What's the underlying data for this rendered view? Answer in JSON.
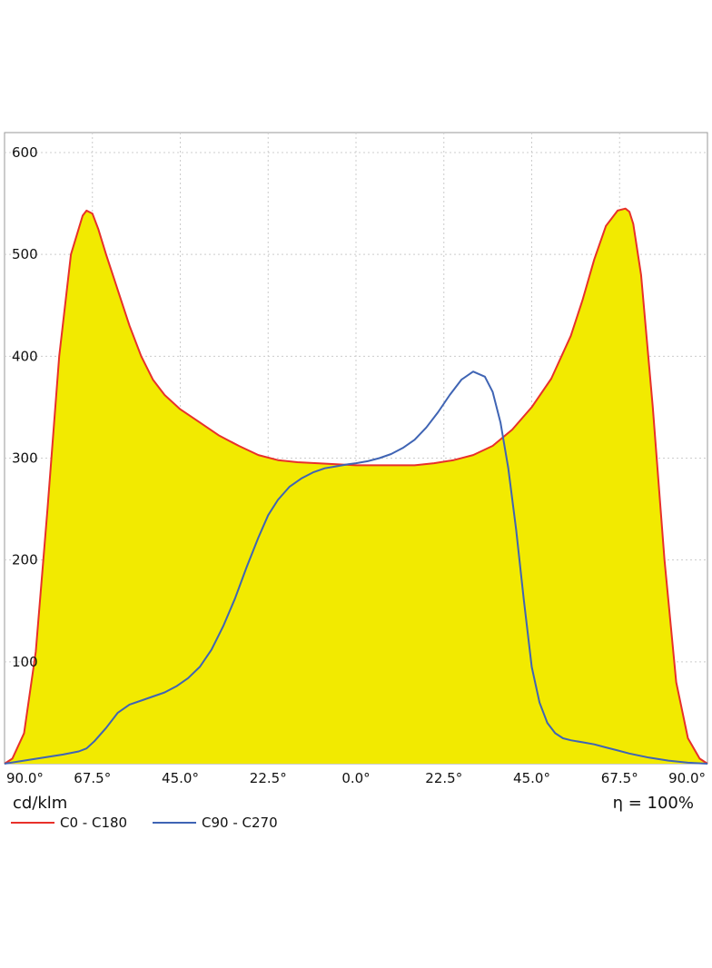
{
  "chart_data": {
    "type": "line",
    "unit_label": "cd/klm",
    "efficiency_label": "η = 100%",
    "ylim": [
      0,
      600
    ],
    "y_ticks": [
      100,
      200,
      300,
      400,
      500,
      600
    ],
    "x_range": [
      -90,
      90
    ],
    "x_ticks": [
      {
        "value": -90,
        "label": "90.0°"
      },
      {
        "value": -67.5,
        "label": "67.5°"
      },
      {
        "value": -45,
        "label": "45.0°"
      },
      {
        "value": -22.5,
        "label": "22.5°"
      },
      {
        "value": 0,
        "label": "0.0°"
      },
      {
        "value": 22.5,
        "label": "22.5°"
      },
      {
        "value": 45,
        "label": "45.0°"
      },
      {
        "value": 67.5,
        "label": "67.5°"
      },
      {
        "value": 90,
        "label": "90.0°"
      }
    ],
    "grid": true,
    "legend_position": "bottom-left",
    "colors": {
      "fill": "#f2ea00",
      "c0": "#e8302a",
      "c90": "#3f64b4",
      "grid": "#cccccc",
      "frame": "#9a9a9a"
    },
    "series": [
      {
        "name": "C0 - C180",
        "color": "#e8302a",
        "filled": true,
        "x": [
          -90,
          -88,
          -85,
          -82,
          -79,
          -76,
          -73,
          -70,
          -69,
          -67.5,
          -66,
          -64,
          -61,
          -58,
          -55,
          -52,
          -49,
          -45,
          -40,
          -35,
          -30,
          -25,
          -20,
          -15,
          -10,
          -5,
          0,
          5,
          10,
          15,
          20,
          25,
          30,
          35,
          40,
          45,
          50,
          55,
          58,
          61,
          64,
          67,
          69,
          70,
          71,
          73,
          76,
          79,
          82,
          85,
          88,
          90
        ],
        "y": [
          0,
          5,
          30,
          110,
          250,
          400,
          500,
          538,
          543,
          540,
          525,
          500,
          465,
          430,
          400,
          377,
          362,
          348,
          335,
          322,
          312,
          303,
          298,
          296,
          295,
          294,
          293,
          293,
          293,
          293,
          295,
          298,
          303,
          312,
          328,
          350,
          378,
          420,
          455,
          495,
          528,
          543,
          545,
          542,
          530,
          480,
          350,
          200,
          80,
          25,
          5,
          0
        ]
      },
      {
        "name": "C90 - C270",
        "color": "#3f64b4",
        "filled": false,
        "x": [
          -90,
          -85,
          -80,
          -75,
          -71,
          -69,
          -67,
          -64,
          -61,
          -58,
          -55,
          -52,
          -49,
          -46,
          -43,
          -40,
          -37,
          -34,
          -31,
          -28,
          -25,
          -22.5,
          -20,
          -17,
          -14,
          -11,
          -8,
          -5,
          -2,
          0,
          3,
          6,
          9,
          12,
          15,
          18,
          21,
          24,
          27,
          30,
          33,
          35,
          37,
          39,
          41,
          43,
          45,
          47,
          49,
          51,
          53,
          55,
          58,
          61,
          64,
          67,
          70,
          75,
          80,
          85,
          90
        ],
        "y": [
          0,
          3,
          6,
          9,
          12,
          15,
          22,
          35,
          50,
          58,
          62,
          66,
          70,
          76,
          84,
          95,
          112,
          135,
          162,
          193,
          222,
          244,
          259,
          272,
          280,
          286,
          290,
          292,
          294,
          295,
          297,
          300,
          304,
          310,
          318,
          330,
          345,
          362,
          377,
          385,
          380,
          365,
          335,
          290,
          230,
          160,
          95,
          60,
          40,
          30,
          25,
          23,
          21,
          19,
          16,
          13,
          10,
          6,
          3,
          1,
          0
        ]
      }
    ]
  }
}
